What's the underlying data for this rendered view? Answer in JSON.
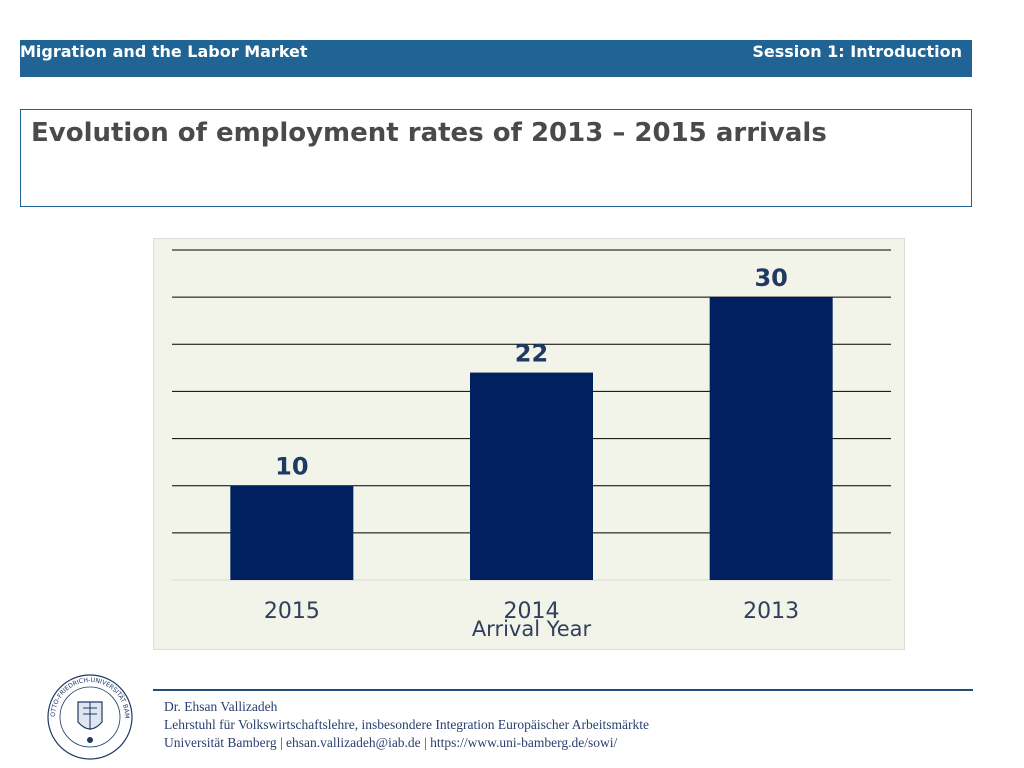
{
  "header": {
    "left": "Migration and the Labor Market",
    "right": "Session 1: Introduction"
  },
  "slide": {
    "title": "Evolution of employment rates of 2013 – 2015 arrivals"
  },
  "colors": {
    "header_bg": "#1f6494",
    "bar": "#002060",
    "data_label": "#1f3864",
    "chart_bg": "#f2f4ea"
  },
  "chart_data": {
    "type": "bar",
    "categories": [
      "2015",
      "2014",
      "2013"
    ],
    "values": [
      10,
      22,
      30
    ],
    "xlabel": "Arrival Year",
    "ylabel": "",
    "ylim": [
      0,
      35
    ],
    "grid": true,
    "data_labels": true,
    "y_tick_labels_shown": false
  },
  "footer": {
    "line1": "Dr. Ehsan Vallizadeh",
    "line2": "Lehrstuhl für Volkswirtschaftslehre, insbesondere Integration Europäischer Arbeitsmärkte",
    "line3": "Universität Bamberg | ehsan.vallizadeh@iab.de | https://www.uni-bamberg.de/sowi/"
  },
  "logo": {
    "icon": "university-seal-icon",
    "text": "OTTO-FRIEDRICH-UNIVERSITÄT BAMBERG · UNIVERSITY OF BAMBERG"
  }
}
